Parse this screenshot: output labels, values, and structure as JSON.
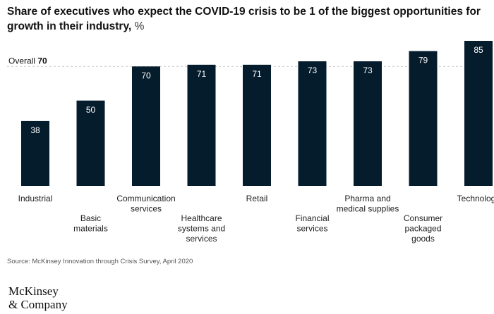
{
  "chart_data": {
    "type": "bar",
    "title": "Share of executives who expect the COVID-19 crisis to be 1 of the biggest opportunities for growth in their industry,",
    "unit": "%",
    "categories": [
      "Industrial",
      "Basic materials",
      "Communication services",
      "Healthcare systems and services",
      "Retail",
      "Financial services",
      "Pharma and medical supplies",
      "Consumer packaged goods",
      "Technology"
    ],
    "category_lines": [
      [
        "Industrial"
      ],
      [
        "Basic",
        "materials"
      ],
      [
        "Communication",
        "services"
      ],
      [
        "Healthcare",
        "systems and",
        "services"
      ],
      [
        "Retail"
      ],
      [
        "Financial",
        "services"
      ],
      [
        "Pharma and",
        "medical supplies"
      ],
      [
        "Consumer",
        "packaged",
        "goods"
      ],
      [
        "Technology"
      ]
    ],
    "values": [
      38,
      50,
      70,
      71,
      71,
      73,
      73,
      79,
      85
    ],
    "reference_line": {
      "label": "Overall",
      "value": 70
    },
    "ylim": [
      0,
      85
    ],
    "bar_color": "#051c2c",
    "label_color": "#ffffff"
  },
  "footer": {
    "source": "Source: McKinsey Innovation through Crisis Survey, April 2020",
    "logo_line1": "McKinsey",
    "logo_line2": "& Company"
  }
}
